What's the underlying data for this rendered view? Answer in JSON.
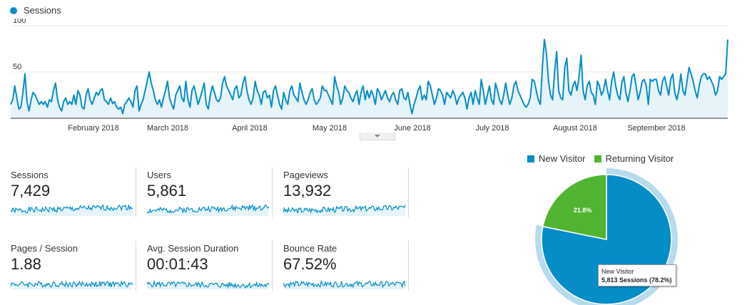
{
  "legend": {
    "label": "Sessions",
    "color": "#058dc7"
  },
  "chart_data": {
    "type": "area",
    "series": [
      {
        "name": "Sessions",
        "values": [
          15,
          20,
          35,
          22,
          10,
          12,
          28,
          48,
          18,
          8,
          20,
          28,
          25,
          20,
          15,
          18,
          15,
          18,
          12,
          20,
          18,
          30,
          38,
          20,
          12,
          8,
          18,
          22,
          15,
          18,
          15,
          25,
          15,
          30,
          25,
          12,
          10,
          25,
          32,
          20,
          15,
          22,
          28,
          25,
          30,
          32,
          20,
          18,
          15,
          22,
          16,
          18,
          12,
          10,
          12,
          5,
          15,
          18,
          22,
          18,
          12,
          30,
          35,
          8,
          15,
          20,
          30,
          40,
          50,
          38,
          30,
          20,
          15,
          20,
          12,
          22,
          30,
          40,
          22,
          15,
          10,
          25,
          30,
          35,
          22,
          18,
          40,
          20,
          12,
          30,
          35,
          25,
          15,
          22,
          30,
          38,
          15,
          10,
          25,
          35,
          28,
          20,
          18,
          22,
          38,
          45,
          35,
          30,
          25,
          20,
          32,
          35,
          22,
          25,
          38,
          45,
          30,
          20,
          15,
          22,
          40,
          30,
          25,
          15,
          28,
          30,
          22,
          25,
          12,
          30,
          35,
          25,
          15,
          10,
          28,
          20,
          15,
          30,
          35,
          25,
          22,
          18,
          38,
          28,
          20,
          15,
          20,
          28,
          32,
          20,
          15,
          18,
          22,
          35,
          30,
          30,
          25,
          20,
          15,
          45,
          35,
          28,
          15,
          22,
          35,
          30,
          28,
          22,
          18,
          25,
          30,
          15,
          28,
          35,
          20,
          30,
          22,
          30,
          25,
          15,
          32,
          28,
          20,
          25,
          30,
          22,
          18,
          25,
          28,
          20,
          15,
          30,
          32,
          22,
          20,
          28,
          15,
          5,
          15,
          22,
          30,
          35,
          20,
          25,
          20,
          40,
          35,
          25,
          15,
          22,
          32,
          30,
          25,
          15,
          28,
          25,
          22,
          30,
          25,
          15,
          22,
          25,
          28,
          22,
          10,
          22,
          28,
          15,
          30,
          22,
          15,
          42,
          30,
          15,
          25,
          35,
          20,
          15,
          38,
          30,
          20,
          15,
          25,
          38,
          25,
          15,
          22,
          35,
          40,
          30,
          25,
          20,
          15,
          12,
          15,
          22,
          42,
          40,
          30,
          20,
          15,
          55,
          85,
          70,
          40,
          25,
          20,
          50,
          72,
          30,
          22,
          20,
          55,
          65,
          30,
          25,
          35,
          40,
          30,
          45,
          68,
          30,
          20,
          35,
          40,
          28,
          25,
          15,
          40,
          35,
          25,
          30,
          42,
          30,
          20,
          40,
          50,
          35,
          25,
          20,
          38,
          45,
          28,
          18,
          30,
          45,
          48,
          35,
          20,
          28,
          40,
          42,
          35,
          15,
          42,
          40,
          42,
          42,
          30,
          25,
          40,
          45,
          35,
          25,
          42,
          48,
          28,
          20,
          30,
          48,
          30,
          25,
          40,
          55,
          48,
          40,
          30,
          22,
          35,
          45,
          48,
          48,
          42,
          45,
          40,
          35,
          25,
          30,
          45,
          42,
          45,
          48,
          85
        ]
      }
    ],
    "x_labels": [
      "February 2018",
      "March 2018",
      "April 2018",
      "May 2018",
      "June 2018",
      "July 2018",
      "August 2018",
      "September 2018"
    ],
    "y_ticks": [
      "100",
      "50"
    ],
    "ylim": [
      0,
      100
    ]
  },
  "toggle": {
    "icon": "caret-down-icon"
  },
  "metrics": [
    {
      "label": "Sessions",
      "value": "7,429",
      "spark_seed": 1,
      "spark_trend": 0.6
    },
    {
      "label": "Users",
      "value": "5,861",
      "spark_seed": 2,
      "spark_trend": 0.55
    },
    {
      "label": "Pageviews",
      "value": "13,932",
      "spark_seed": 3,
      "spark_trend": 0.5
    },
    {
      "label": "Pages / Session",
      "value": "1.88",
      "spark_seed": 4,
      "spark_trend": 0.0
    },
    {
      "label": "Avg. Session Duration",
      "value": "00:01:43",
      "spark_seed": 5,
      "spark_trend": -0.2
    },
    {
      "label": "Bounce Rate",
      "value": "67.52%",
      "spark_seed": 6,
      "spark_trend": 0.0
    }
  ],
  "pie": {
    "legend": [
      {
        "label": "New Visitor",
        "color": "#058dc7"
      },
      {
        "label": "Returning Visitor",
        "color": "#50b432"
      }
    ],
    "slices": [
      {
        "label": "New Visitor",
        "percent": 78.2,
        "color": "#058dc7"
      },
      {
        "label": "Returning Visitor",
        "percent": 21.8,
        "color": "#50b432",
        "text": "21.8%"
      }
    ],
    "tooltip": {
      "title": "New Visitor",
      "detail": "5,813 Sessions (78.2%)"
    }
  }
}
